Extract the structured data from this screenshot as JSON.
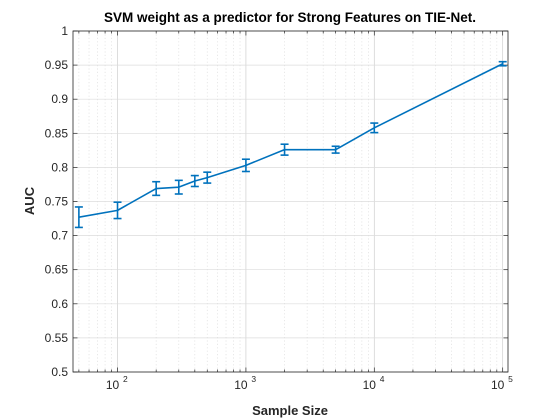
{
  "chart_data": {
    "type": "line",
    "title": "SVM weight as a predictor for Strong Features on TIE-Net.",
    "xlabel": "Sample Size",
    "ylabel": "AUC",
    "xscale": "log",
    "xlim": [
      45,
      110000
    ],
    "ylim": [
      0.5,
      1
    ],
    "grid": "on (major and minor, dotted on x)",
    "line_color": "#0072BD",
    "yticks": [
      "0.5",
      "0.55",
      "0.6",
      "0.65",
      "0.7",
      "0.75",
      "0.8",
      "0.85",
      "0.9",
      "0.95",
      "1"
    ],
    "xticks": [
      {
        "value": 100,
        "base": "10",
        "exp": "2"
      },
      {
        "value": 1000,
        "base": "10",
        "exp": "3"
      },
      {
        "value": 10000,
        "base": "10",
        "exp": "4"
      },
      {
        "value": 100000,
        "base": "10",
        "exp": "5"
      }
    ],
    "series": [
      {
        "x": [
          50,
          100,
          200,
          300,
          400,
          500,
          1000,
          2000,
          5000,
          10000,
          100000
        ],
        "y": [
          0.727,
          0.737,
          0.769,
          0.771,
          0.78,
          0.785,
          0.803,
          0.826,
          0.826,
          0.858,
          0.952
        ],
        "err": [
          0.015,
          0.012,
          0.01,
          0.01,
          0.008,
          0.008,
          0.009,
          0.008,
          0.005,
          0.007,
          0.003
        ]
      }
    ]
  }
}
